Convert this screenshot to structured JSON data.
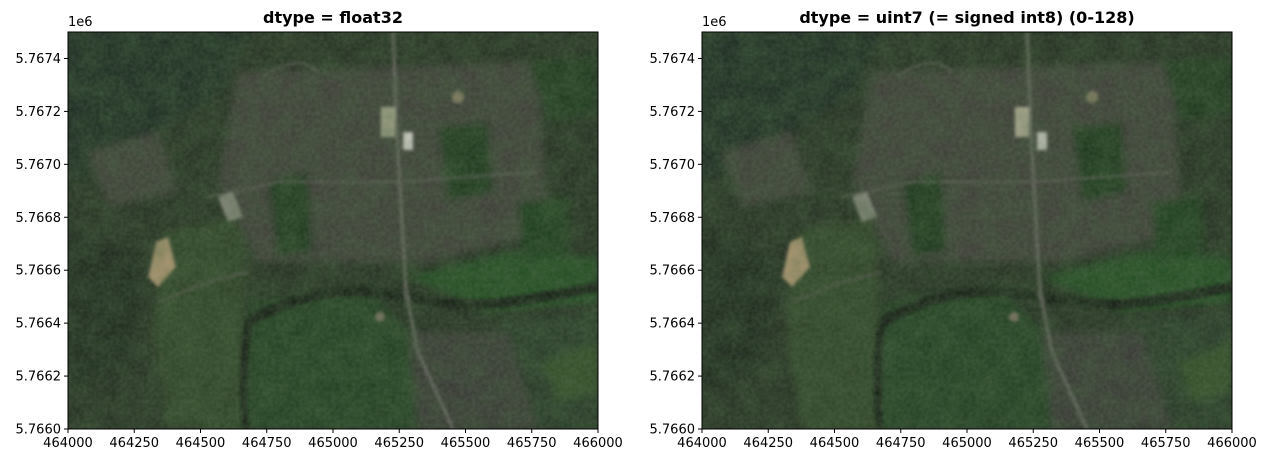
{
  "chart_data": [
    {
      "type": "image",
      "title": "dtype = float32",
      "x_offset_label": "",
      "y_offset_label": "1e6",
      "xlim": [
        464000,
        466000
      ],
      "ylim": [
        5.766,
        5.7675
      ],
      "xticks": [
        464000,
        464250,
        464500,
        464750,
        465000,
        465250,
        465500,
        465750,
        466000
      ],
      "xtick_labels": [
        "464000",
        "464250",
        "464500",
        "464750",
        "465000",
        "465250",
        "465500",
        "465750",
        "466000"
      ],
      "yticks": [
        5.766,
        5.7662,
        5.7664,
        5.7666,
        5.7668,
        5.767,
        5.7672,
        5.7674
      ],
      "ytick_labels": [
        "5.7660",
        "5.7662",
        "5.7664",
        "5.7666",
        "5.7668",
        "5.7670",
        "5.7672",
        "5.7674"
      ]
    },
    {
      "type": "image",
      "title": "dtype = uint7 (= signed int8) (0-128)",
      "x_offset_label": "",
      "y_offset_label": "1e6",
      "xlim": [
        464000,
        466000
      ],
      "ylim": [
        5.766,
        5.7675
      ],
      "xticks": [
        464000,
        464250,
        464500,
        464750,
        465000,
        465250,
        465500,
        465750,
        466000
      ],
      "xtick_labels": [
        "464000",
        "464250",
        "464500",
        "464750",
        "465000",
        "465250",
        "465500",
        "465750",
        "466000"
      ],
      "yticks": [
        5.766,
        5.7662,
        5.7664,
        5.7666,
        5.7668,
        5.767,
        5.7672,
        5.7674
      ],
      "ytick_labels": [
        "5.7660",
        "5.7662",
        "5.7664",
        "5.7666",
        "5.7668",
        "5.7670",
        "5.7672",
        "5.7674"
      ]
    }
  ],
  "colors": {
    "base": "#1f2a1c",
    "field": "#2d4a26",
    "dark_vegetation": "#0e1f0e",
    "urban": "#4f4d4c",
    "bright": "#b9b29a",
    "sand": "#b49a72",
    "water": "#0b120b"
  }
}
